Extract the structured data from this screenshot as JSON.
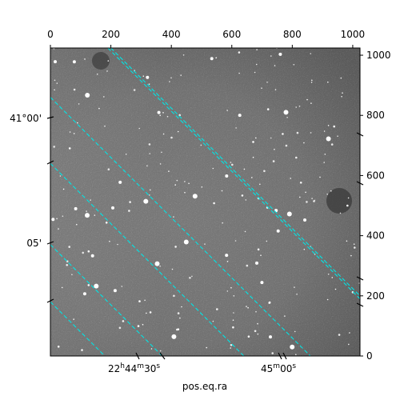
{
  "chart_data": {
    "type": "heatmap",
    "title": "",
    "xlabel": "pos.eq.ra",
    "ylabel": "",
    "colormap": "grayscale",
    "pixel_xlim": [
      0,
      1024
    ],
    "pixel_ylim": [
      0,
      1024
    ],
    "pixel_x_ticks": [
      0,
      200,
      400,
      600,
      800,
      1000
    ],
    "pixel_y_ticks": [
      0,
      200,
      400,
      600,
      800,
      1000
    ],
    "ra_tick_labels": [
      "22h44m30s",
      "45m00s"
    ],
    "dec_tick_labels": [
      "41°00'",
      "05'"
    ],
    "grid_color": "#00e5e5",
    "grid_style": "dashed",
    "grid_lines": [
      {
        "p1": [
          200,
          1024
        ],
        "p2": [
          1024,
          200
        ]
      },
      {
        "p1": [
          0,
          860
        ],
        "p2": [
          860,
          0
        ]
      },
      {
        "p1": [
          0,
          370
        ],
        "p2": [
          370,
          0
        ]
      },
      {
        "p1": [
          190,
          1024
        ],
        "p2": [
          1024,
          190
        ]
      },
      {
        "p1": [
          0,
          640
        ],
        "p2": [
          640,
          0
        ]
      },
      {
        "p1": [
          0,
          180
        ],
        "p2": [
          180,
          0
        ]
      }
    ]
  },
  "ra_label_parts": {
    "l1": {
      "h": "22",
      "hu": "h",
      "m": "44",
      "mu": "m",
      "s": "30",
      "su": "s"
    },
    "l2": {
      "m": "45",
      "mu": "m",
      "s": "00",
      "su": "s"
    }
  }
}
